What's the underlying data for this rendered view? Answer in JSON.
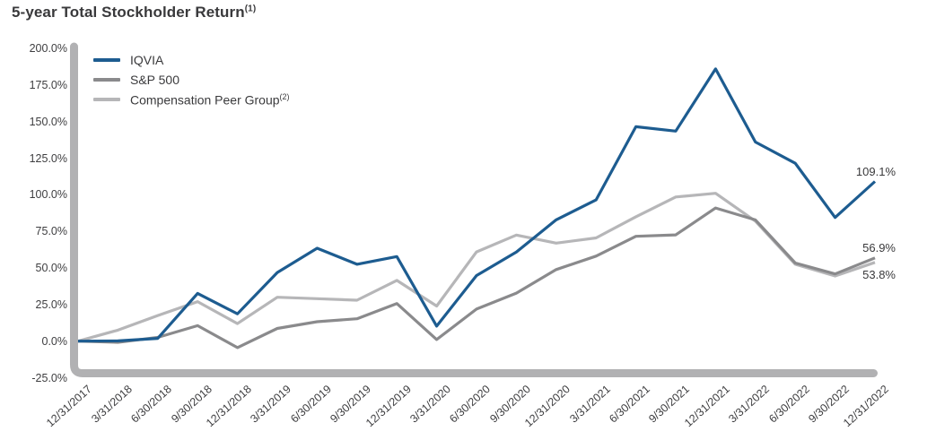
{
  "chart_data": {
    "type": "line",
    "title": "5-year Total Stockholder Return",
    "title_superscript": "(1)",
    "grid": false,
    "legend_position": "top-left",
    "ylim": [
      -25,
      200
    ],
    "y_tick_labels": [
      "200.0%",
      "175.0%",
      "150.0%",
      "125.0%",
      "100.0%",
      "75.0%",
      "50.0%",
      "25.0%",
      "0.0%",
      "-25.0%"
    ],
    "x_labels": [
      "12/31/2017",
      "3/31/2018",
      "6/30/2018",
      "9/30/2018",
      "12/31/2018",
      "3/31/2019",
      "6/30/2019",
      "9/30/2019",
      "12/31/2019",
      "3/31/2020",
      "6/30/2020",
      "9/30/2020",
      "12/31/2020",
      "3/31/2021",
      "6/30/2021",
      "9/30/2021",
      "12/31/2021",
      "3/31/2022",
      "6/30/2022",
      "9/30/2022",
      "12/31/2022"
    ],
    "axis_color": "#b1b1b3",
    "series": [
      {
        "name": "IQVIA",
        "color": "#1d5c90",
        "end_label": "109.1%",
        "values": [
          0.0,
          0.2,
          1.9,
          32.6,
          18.7,
          46.9,
          63.5,
          52.5,
          57.8,
          10.3,
          44.8,
          60.9,
          82.9,
          96.5,
          146.5,
          143.5,
          186.0,
          136.0,
          121.5,
          84.5,
          109.1
        ]
      },
      {
        "name": "S&P 500",
        "color": "#8a8a8c",
        "end_label": "56.9%",
        "values": [
          0.0,
          -0.8,
          2.6,
          10.6,
          -4.4,
          8.7,
          13.3,
          15.3,
          25.7,
          1.1,
          21.9,
          32.8,
          48.9,
          58.1,
          71.6,
          72.6,
          91.0,
          82.8,
          53.4,
          45.9,
          56.9
        ]
      },
      {
        "name": "Compensation Peer Group",
        "superscript": "(2)",
        "color": "#b6b6b8",
        "end_label": "53.8%",
        "values": [
          0.0,
          7.5,
          17.5,
          27.0,
          12.0,
          30.0,
          29.0,
          28.0,
          41.5,
          24.0,
          61.0,
          72.5,
          67.0,
          70.5,
          85.0,
          98.5,
          101.0,
          82.0,
          52.5,
          44.5,
          53.8
        ]
      }
    ]
  }
}
